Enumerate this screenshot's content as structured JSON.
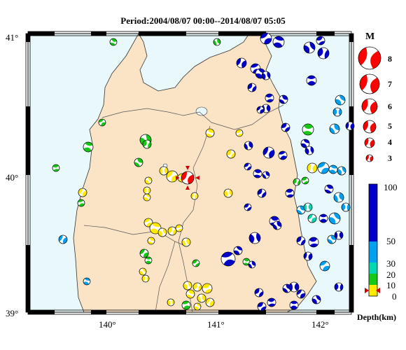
{
  "title": "Period:2004/08/07 00:00--2014/08/07 05:05",
  "map": {
    "lat_labels": [
      "41°",
      "40°",
      "39°"
    ],
    "lon_labels": [
      "140°",
      "141°",
      "142°"
    ],
    "colors": {
      "sea": "#e8f8fb",
      "land": "#fbe3c6",
      "border": "#000000",
      "inner_border": "#555555"
    }
  },
  "magnitude_legend": {
    "heading": "M",
    "labels": [
      "8",
      "7",
      "6",
      "5",
      "4",
      "3"
    ],
    "color": "#ff0000"
  },
  "depth_scale": {
    "ticks": [
      "100",
      "50",
      "30",
      "20",
      "10",
      "0"
    ],
    "unit_label": "Depth(km)",
    "bands": [
      {
        "from": 0,
        "to": 10,
        "color": "#ffea00"
      },
      {
        "from": 10,
        "to": 20,
        "color": "#14c814"
      },
      {
        "from": 20,
        "to": 30,
        "color": "#00d6b0"
      },
      {
        "from": 30,
        "to": 50,
        "color": "#00a0f0"
      },
      {
        "from": 50,
        "to": 100,
        "color": "#0000c8"
      }
    ]
  }
}
